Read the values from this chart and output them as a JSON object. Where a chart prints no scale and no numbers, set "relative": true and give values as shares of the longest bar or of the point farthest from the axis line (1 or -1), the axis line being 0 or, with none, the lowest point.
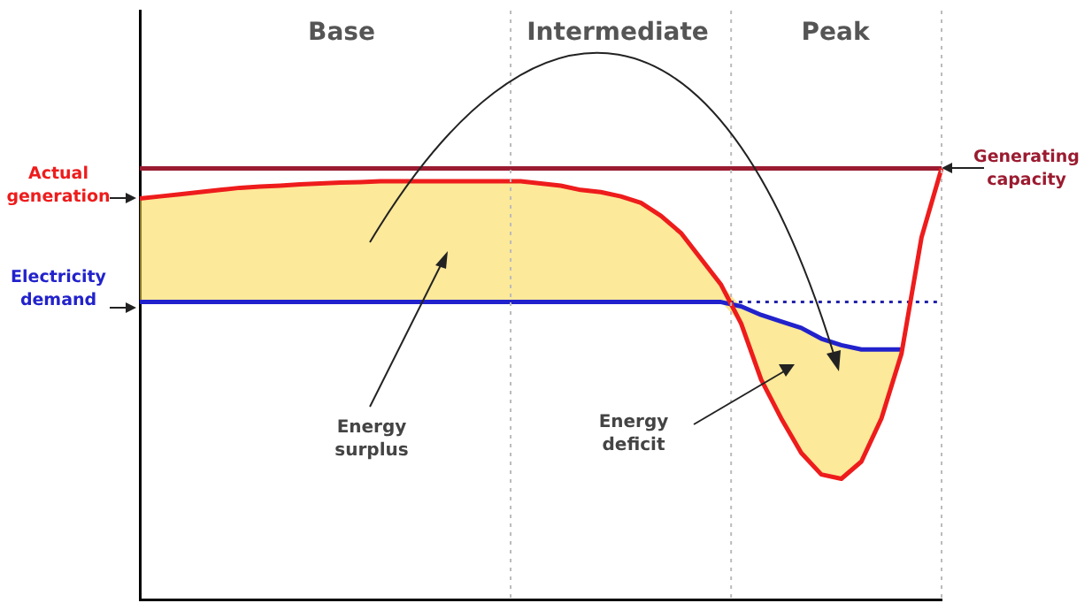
{
  "chart_data": {
    "type": "line",
    "relative": true,
    "tick_labels": false,
    "grid": false,
    "legend": false,
    "marker": "none",
    "annotations": [
      "Base",
      "Intermediate",
      "Peak",
      "Energy surplus",
      "Energy deficit"
    ],
    "categories": [
      null,
      null,
      null,
      null,
      null,
      null,
      null,
      null,
      null,
      null,
      null,
      null,
      null,
      null,
      null,
      null,
      null,
      null,
      null,
      null,
      null,
      null,
      null,
      null,
      null,
      null,
      null,
      null,
      null,
      null,
      null,
      null,
      null,
      null,
      null,
      null,
      null,
      null,
      null,
      null,
      null
    ],
    "series": [
      {
        "name": "Actual generation",
        "color": "#ee1c1c",
        "values": [
          0.93,
          0.935,
          0.94,
          0.945,
          0.95,
          0.955,
          0.958,
          0.96,
          0.963,
          0.965,
          0.967,
          0.968,
          0.97,
          0.97,
          0.97,
          0.97,
          0.97,
          0.97,
          0.97,
          0.97,
          0.965,
          0.96,
          0.95,
          0.945,
          0.935,
          0.92,
          0.89,
          0.85,
          0.79,
          0.73,
          0.64,
          0.51,
          0.42,
          0.34,
          0.29,
          0.28,
          0.32,
          0.42,
          0.57,
          0.84,
          1
        ],
        "upper": [
          0.93,
          0.935,
          0.94,
          0.945,
          0.95,
          0.955,
          0.958,
          0.96,
          0.963,
          0.965,
          0.967,
          0.968,
          0.97,
          0.97,
          0.97,
          0.97,
          0.97,
          0.97,
          0.97,
          0.97,
          0.965,
          0.96,
          0.95,
          0.945,
          0.935,
          0.92,
          0.89,
          0.85,
          0.79,
          0.73,
          0.68,
          0.66,
          0.645,
          0.63,
          0.605,
          0.59,
          0.58,
          0.58,
          0.58,
          null,
          null
        ],
        "lower": [
          0.69,
          0.69,
          0.69,
          0.69,
          0.69,
          0.69,
          0.69,
          0.69,
          0.69,
          0.69,
          0.69,
          0.69,
          0.69,
          0.69,
          0.69,
          0.69,
          0.69,
          0.69,
          0.69,
          0.69,
          0.69,
          0.69,
          0.69,
          0.69,
          0.69,
          0.69,
          0.69,
          0.69,
          0.69,
          0.69,
          0.64,
          0.51,
          0.42,
          0.34,
          0.29,
          0.28,
          0.32,
          0.42,
          0.57,
          null,
          null
        ]
      },
      {
        "name": "Electricity demand",
        "color": "#2222cc",
        "values": [
          0.69,
          0.69,
          0.69,
          0.69,
          0.69,
          0.69,
          0.69,
          0.69,
          0.69,
          0.69,
          0.69,
          0.69,
          0.69,
          0.69,
          0.69,
          0.69,
          0.69,
          0.69,
          0.69,
          0.69,
          0.69,
          0.69,
          0.69,
          0.69,
          0.69,
          0.69,
          0.69,
          0.69,
          0.69,
          0.69,
          0.68,
          0.66,
          0.645,
          0.63,
          0.605,
          0.59,
          0.58,
          0.58,
          0.58,
          null,
          null
        ]
      },
      {
        "color": "#2222aa",
        "line_style": "dotted",
        "values": [
          null,
          null,
          null,
          null,
          null,
          null,
          null,
          null,
          null,
          null,
          null,
          null,
          null,
          null,
          null,
          null,
          null,
          null,
          null,
          null,
          null,
          null,
          null,
          null,
          null,
          null,
          null,
          null,
          null,
          0.69,
          0.69,
          0.69,
          0.69,
          0.69,
          0.69,
          0.69,
          0.69,
          0.69,
          0.69,
          0.69,
          0.69
        ]
      },
      {
        "name": "Generating capacity",
        "color": "#9b1b30",
        "values": [
          1,
          1,
          1,
          1,
          1,
          1,
          1,
          1,
          1,
          1,
          1,
          1,
          1,
          1,
          1,
          1,
          1,
          1,
          1,
          1,
          1,
          1,
          1,
          1,
          1,
          1,
          1,
          1,
          1,
          1,
          1,
          1,
          1,
          1,
          1,
          1,
          1,
          1,
          1,
          1,
          1
        ]
      }
    ]
  }
}
